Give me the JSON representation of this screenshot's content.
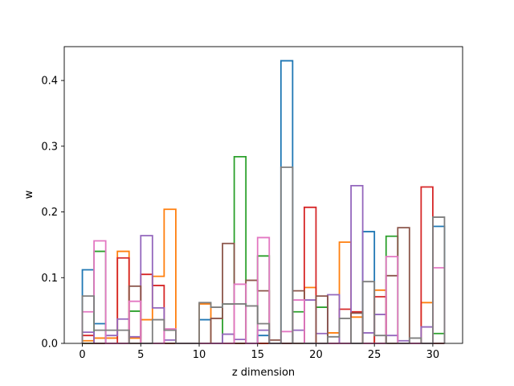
{
  "chart_data": {
    "type": "histogram-step",
    "title": "",
    "xlabel": "z dimension",
    "ylabel": "w",
    "xlim": [
      -1.55,
      32.55
    ],
    "ylim": [
      0,
      0.4515
    ],
    "bin_width": 1,
    "bin_start": 0,
    "x_ticks": [
      0,
      5,
      10,
      15,
      20,
      25,
      30
    ],
    "y_ticks": [
      0.0,
      0.1,
      0.2,
      0.3,
      0.4
    ],
    "grid": false,
    "series": [
      {
        "color": "#1f77b4",
        "values": [
          0.112,
          0.03,
          0.0,
          0.0,
          0.0,
          0.0,
          0.0,
          0.0,
          0.0,
          0.0,
          0.036,
          0.0,
          0.0,
          0.0,
          0.0,
          0.012,
          0.0,
          0.43,
          0.0,
          0.0,
          0.0,
          0.0,
          0.0,
          0.0,
          0.17,
          0.0,
          0.0,
          0.0,
          0.0,
          0.0,
          0.178
        ]
      },
      {
        "color": "#ff7f0e",
        "values": [
          0.004,
          0.008,
          0.008,
          0.14,
          0.008,
          0.036,
          0.102,
          0.204,
          0.0,
          0.0,
          0.06,
          0.0,
          0.0,
          0.0,
          0.0,
          0.0,
          0.0,
          0.0,
          0.0,
          0.085,
          0.0,
          0.016,
          0.154,
          0.04,
          0.0,
          0.081,
          0.0,
          0.0,
          0.0,
          0.062,
          0.0
        ]
      },
      {
        "color": "#2ca02c",
        "values": [
          0.0,
          0.14,
          0.0,
          0.0,
          0.049,
          0.0,
          0.0,
          0.0,
          0.0,
          0.0,
          0.0,
          0.0,
          0.06,
          0.284,
          0.0,
          0.133,
          0.0,
          0.0,
          0.048,
          0.0,
          0.055,
          0.0,
          0.0,
          0.0,
          0.0,
          0.0,
          0.163,
          0.0,
          0.0,
          0.0,
          0.015
        ]
      },
      {
        "color": "#d62728",
        "values": [
          0.012,
          0.0,
          0.0,
          0.13,
          0.0,
          0.105,
          0.088,
          0.0,
          0.0,
          0.0,
          0.0,
          0.0,
          0.0,
          0.0,
          0.0,
          0.0,
          0.0,
          0.0,
          0.0,
          0.207,
          0.0,
          0.0,
          0.052,
          0.048,
          0.0,
          0.071,
          0.0,
          0.0,
          0.0,
          0.238,
          0.0
        ]
      },
      {
        "color": "#9467bd",
        "values": [
          0.017,
          0.0,
          0.012,
          0.037,
          0.01,
          0.164,
          0.054,
          0.005,
          0.0,
          0.0,
          0.0,
          0.0,
          0.014,
          0.006,
          0.0,
          0.02,
          0.0,
          0.0,
          0.02,
          0.066,
          0.015,
          0.074,
          0.0,
          0.24,
          0.016,
          0.044,
          0.012,
          0.004,
          0.0,
          0.025,
          0.0
        ]
      },
      {
        "color": "#8c564b",
        "values": [
          0.0,
          0.0,
          0.0,
          0.0,
          0.087,
          0.0,
          0.0,
          0.0,
          0.0,
          0.0,
          0.0,
          0.038,
          0.152,
          0.0,
          0.096,
          0.08,
          0.005,
          0.0,
          0.08,
          0.0,
          0.072,
          0.0,
          0.0,
          0.046,
          0.0,
          0.0,
          0.103,
          0.176,
          0.0,
          0.0,
          0.0
        ]
      },
      {
        "color": "#e377c2",
        "values": [
          0.048,
          0.156,
          0.0,
          0.0,
          0.064,
          0.0,
          0.0,
          0.022,
          0.0,
          0.0,
          0.0,
          0.0,
          0.0,
          0.09,
          0.0,
          0.161,
          0.0,
          0.018,
          0.066,
          0.0,
          0.0,
          0.0,
          0.0,
          0.0,
          0.0,
          0.0,
          0.132,
          0.0,
          0.0,
          0.0,
          0.115
        ]
      },
      {
        "color": "#7f7f7f",
        "values": [
          0.072,
          0.02,
          0.02,
          0.02,
          0.0,
          0.0,
          0.036,
          0.02,
          0.0,
          0.0,
          0.062,
          0.055,
          0.06,
          0.06,
          0.057,
          0.03,
          0.0,
          0.268,
          0.0,
          0.0,
          0.0,
          0.01,
          0.038,
          0.0,
          0.094,
          0.012,
          0.0,
          0.0,
          0.008,
          0.0,
          0.192
        ]
      }
    ]
  }
}
